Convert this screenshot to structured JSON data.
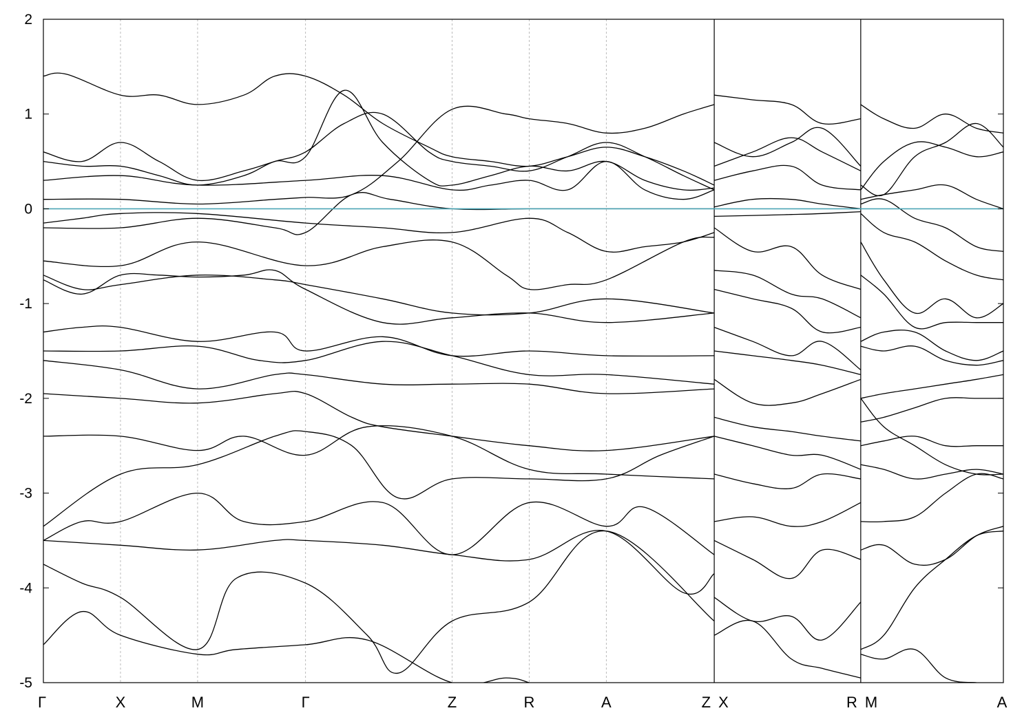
{
  "chart_data": {
    "type": "line",
    "title": "",
    "xlabel": "",
    "ylabel": "",
    "ylim": [
      -5,
      2
    ],
    "y_ticks": [
      2,
      1,
      0,
      -1,
      -2,
      -3,
      -4,
      -5
    ],
    "y_tick_labels": [
      "2",
      "1",
      "0",
      "-1",
      "-2",
      "-3",
      "-4",
      "-5"
    ],
    "fermi_level": 0,
    "fermi_line_color": "#4ba5b5",
    "grid": false,
    "legend": "none",
    "kpath_tick_positions": [
      0,
      1,
      2,
      3.4,
      5.3,
      6.3,
      7.3,
      8.7,
      10.6,
      12.45
    ],
    "kpath_tick_labels": [
      "Γ",
      "X",
      "M",
      "Γ",
      "Z",
      "R",
      "A",
      "Z",
      "R",
      "A"
    ],
    "kpath_extra_labels": [
      {
        "text": "M",
        "x": 10.6,
        "side": "right"
      },
      {
        "text": "X",
        "x": 8.7,
        "side": "right"
      }
    ],
    "segment_breaks": [
      8.7,
      10.6
    ],
    "xlim": [
      0,
      12.45
    ],
    "bands": [
      {
        "x": [
          0,
          0.3,
          1,
          1.5,
          2,
          2.6,
          3,
          3.4,
          3.9,
          4.4,
          5,
          5.3,
          5.8,
          6.3,
          6.8,
          7.3,
          7.8,
          8.3,
          8.7
        ],
        "y": [
          1.4,
          1.42,
          1.2,
          1.2,
          1.1,
          1.2,
          1.4,
          1.4,
          1.2,
          0.9,
          0.65,
          0.55,
          0.5,
          0.45,
          0.55,
          0.65,
          0.55,
          0.4,
          0.25
        ]
      },
      {
        "x": [
          0,
          0.5,
          1,
          1.5,
          2,
          2.6,
          3,
          3.4,
          3.9,
          4.4,
          5,
          5.3,
          5.8,
          6.3,
          6.8,
          7.3,
          7.8,
          8.3,
          8.7
        ],
        "y": [
          0.6,
          0.5,
          0.7,
          0.5,
          0.3,
          0.4,
          0.5,
          0.6,
          0.9,
          1.0,
          0.6,
          0.5,
          0.45,
          0.4,
          0.55,
          0.7,
          0.55,
          0.35,
          0.2
        ]
      },
      {
        "x": [
          0,
          0.5,
          1,
          1.5,
          2,
          2.6,
          3,
          3.4,
          3.9,
          4.4,
          5,
          5.3,
          5.8,
          6.3,
          6.8,
          7.3,
          7.8,
          8.3,
          8.7
        ],
        "y": [
          0.5,
          0.45,
          0.45,
          0.35,
          0.25,
          0.35,
          0.5,
          0.55,
          1.25,
          0.7,
          0.3,
          0.25,
          0.35,
          0.45,
          0.4,
          0.5,
          0.3,
          0.2,
          0.22
        ]
      },
      {
        "x": [
          0,
          1,
          2,
          3.4,
          4.4,
          5.3,
          5.8,
          6.3,
          6.8,
          7.3,
          7.8,
          8.3,
          8.7
        ],
        "y": [
          0.3,
          0.35,
          0.25,
          0.3,
          0.35,
          0.2,
          0.25,
          0.3,
          0.2,
          0.5,
          0.2,
          0.1,
          0.2
        ]
      },
      {
        "x": [
          0,
          1,
          2,
          3,
          3.4,
          4,
          4.6,
          5.3,
          6,
          6.3,
          6.8,
          7.3,
          7.8,
          8.3,
          8.7
        ],
        "y": [
          0.1,
          0.1,
          0.05,
          0.1,
          0.12,
          0.15,
          0.5,
          1.05,
          1.0,
          0.95,
          0.9,
          0.8,
          0.85,
          1.0,
          1.1
        ]
      },
      {
        "x": [
          0,
          0.5,
          1,
          2,
          3.4,
          4.4,
          5.3,
          6.3,
          6.8,
          7.3,
          7.8,
          8.3,
          8.7
        ],
        "y": [
          -0.15,
          -0.1,
          -0.05,
          -0.05,
          -0.15,
          -0.2,
          -0.25,
          -0.1,
          -0.25,
          -0.45,
          -0.4,
          -0.35,
          -0.25
        ]
      },
      {
        "x": [
          0,
          1,
          2,
          3,
          3.4,
          4,
          4.5,
          5.3,
          6.3,
          7.3,
          8.7
        ],
        "y": [
          -0.2,
          -0.2,
          -0.1,
          -0.2,
          -0.25,
          0.15,
          0.1,
          0.0,
          0.0,
          0.0,
          0.0
        ]
      },
      {
        "x": [
          0,
          1,
          2,
          3.4,
          4.4,
          5.3,
          6,
          6.3,
          6.8,
          7.3,
          8.3,
          8.7
        ],
        "y": [
          -0.55,
          -0.6,
          -0.35,
          -0.6,
          -0.4,
          -0.35,
          -0.7,
          -0.85,
          -0.8,
          -0.75,
          -0.35,
          -0.3
        ]
      },
      {
        "x": [
          0,
          0.5,
          1,
          2,
          3,
          3.4,
          4.4,
          5.3,
          6.3,
          7.3,
          8.7
        ],
        "y": [
          -0.7,
          -0.85,
          -0.8,
          -0.7,
          -0.75,
          -0.8,
          -0.95,
          -1.1,
          -1.1,
          -0.95,
          -1.1
        ]
      },
      {
        "x": [
          0,
          0.5,
          1,
          1.5,
          2,
          2.6,
          3,
          3.4,
          4.4,
          5.3,
          6.3,
          7.3,
          8.7
        ],
        "y": [
          -0.75,
          -0.9,
          -0.7,
          -0.7,
          -0.72,
          -0.7,
          -0.65,
          -0.85,
          -1.2,
          -1.15,
          -1.1,
          -1.2,
          -1.1
        ]
      },
      {
        "x": [
          0,
          0.5,
          1,
          2,
          3,
          3.4,
          4.4,
          5.3,
          6.3,
          7.3,
          8.7
        ],
        "y": [
          -1.3,
          -1.25,
          -1.25,
          -1.4,
          -1.3,
          -1.5,
          -1.35,
          -1.55,
          -1.5,
          -1.55,
          -1.55
        ]
      },
      {
        "x": [
          0,
          1,
          2,
          2.8,
          3.4,
          4.4,
          5.3,
          6.3,
          7.3,
          8.7
        ],
        "y": [
          -1.5,
          -1.5,
          -1.45,
          -1.6,
          -1.6,
          -1.4,
          -1.55,
          -1.75,
          -1.75,
          -1.85
        ]
      },
      {
        "x": [
          0,
          1,
          2,
          3,
          3.4,
          4.4,
          5.3,
          6.3,
          7.3,
          8.7
        ],
        "y": [
          -1.6,
          -1.7,
          -1.9,
          -1.75,
          -1.75,
          -1.85,
          -1.85,
          -1.85,
          -1.95,
          -1.9
        ]
      },
      {
        "x": [
          0,
          1,
          2,
          3,
          3.4,
          4,
          4.4,
          5.3,
          6.3,
          7.3,
          8.7
        ],
        "y": [
          -1.95,
          -2.0,
          -2.05,
          -1.95,
          -1.95,
          -2.2,
          -2.3,
          -2.4,
          -2.5,
          -2.55,
          -2.4
        ]
      },
      {
        "x": [
          0,
          1,
          2,
          2.6,
          3.4,
          4.2,
          5.3,
          6.3,
          7.3,
          8.7
        ],
        "y": [
          -2.4,
          -2.4,
          -2.55,
          -2.4,
          -2.6,
          -2.3,
          -2.4,
          -2.75,
          -2.8,
          -2.85
        ]
      },
      {
        "x": [
          0,
          1,
          2,
          3,
          3.4,
          4,
          4.6,
          5.3,
          6.3,
          7.3,
          8,
          8.7
        ],
        "y": [
          -3.35,
          -2.8,
          -2.7,
          -2.4,
          -2.35,
          -2.5,
          -3.05,
          -2.85,
          -2.85,
          -2.85,
          -2.6,
          -2.4
        ]
      },
      {
        "x": [
          0,
          0.5,
          1,
          2,
          2.6,
          3.4,
          4.4,
          5.3,
          6.3,
          7.3,
          7.8,
          8.7
        ],
        "y": [
          -3.5,
          -3.3,
          -3.3,
          -3.0,
          -3.3,
          -3.3,
          -3.1,
          -3.65,
          -3.1,
          -3.35,
          -3.15,
          -3.65
        ]
      },
      {
        "x": [
          0,
          1,
          2,
          3,
          3.4,
          4.4,
          5.3,
          6.3,
          7.3,
          8.3,
          8.7
        ],
        "y": [
          -3.5,
          -3.55,
          -3.6,
          -3.5,
          -3.5,
          -3.55,
          -3.65,
          -3.7,
          -3.4,
          -4.05,
          -3.85
        ]
      },
      {
        "x": [
          0,
          0.5,
          1,
          2,
          2.5,
          3.4,
          4.2,
          4.6,
          5.3,
          6.3,
          7.3,
          8.7
        ],
        "y": [
          -3.75,
          -3.95,
          -4.1,
          -4.65,
          -3.9,
          -3.95,
          -4.5,
          -4.9,
          -4.35,
          -4.15,
          -3.4,
          -4.35
        ]
      },
      {
        "x": [
          0,
          0.5,
          1,
          2,
          2.5,
          3.4,
          4.2,
          5.3,
          6,
          6.3
        ],
        "y": [
          -4.6,
          -4.25,
          -4.5,
          -4.7,
          -4.65,
          -4.6,
          -4.55,
          -5.0,
          -4.95,
          -5.0
        ]
      },
      {
        "x": [
          8.7,
          9.2,
          9.7,
          10.1,
          10.6
        ],
        "y": [
          1.2,
          1.15,
          1.1,
          0.9,
          0.95
        ]
      },
      {
        "x": [
          8.7,
          9.2,
          9.7,
          10.1,
          10.6
        ],
        "y": [
          0.7,
          0.55,
          0.7,
          0.85,
          0.45
        ]
      },
      {
        "x": [
          8.7,
          9.2,
          9.7,
          10.1,
          10.6
        ],
        "y": [
          0.45,
          0.6,
          0.75,
          0.6,
          0.4
        ]
      },
      {
        "x": [
          8.7,
          9.2,
          9.7,
          10.1,
          10.6
        ],
        "y": [
          0.3,
          0.4,
          0.45,
          0.25,
          0.2
        ]
      },
      {
        "x": [
          8.7,
          9.2,
          9.7,
          10.1,
          10.6
        ],
        "y": [
          0.02,
          0.1,
          0.1,
          0.05,
          0.0
        ]
      },
      {
        "x": [
          8.7,
          9.2,
          9.7,
          10.1,
          10.6
        ],
        "y": [
          -0.08,
          -0.07,
          -0.06,
          -0.05,
          -0.03
        ]
      },
      {
        "x": [
          8.7,
          9.2,
          9.7,
          10.1,
          10.6
        ],
        "y": [
          -0.2,
          -0.45,
          -0.4,
          -0.7,
          -0.85
        ]
      },
      {
        "x": [
          8.7,
          9.2,
          9.7,
          10.1,
          10.6
        ],
        "y": [
          -0.65,
          -0.7,
          -0.9,
          -0.95,
          -1.15
        ]
      },
      {
        "x": [
          8.7,
          9.2,
          9.7,
          10.1,
          10.6
        ],
        "y": [
          -0.85,
          -0.95,
          -1.05,
          -1.3,
          -1.25
        ]
      },
      {
        "x": [
          8.7,
          9.2,
          9.7,
          10.1,
          10.6
        ],
        "y": [
          -1.25,
          -1.4,
          -1.55,
          -1.4,
          -1.7
        ]
      },
      {
        "x": [
          8.7,
          9.2,
          9.7,
          10.1,
          10.6
        ],
        "y": [
          -1.5,
          -1.55,
          -1.6,
          -1.65,
          -1.75
        ]
      },
      {
        "x": [
          8.7,
          9.2,
          9.7,
          10.1,
          10.6
        ],
        "y": [
          -1.8,
          -2.05,
          -2.05,
          -1.95,
          -1.8
        ]
      },
      {
        "x": [
          8.7,
          9.2,
          9.7,
          10.1,
          10.6
        ],
        "y": [
          -2.2,
          -2.3,
          -2.35,
          -2.4,
          -2.45
        ]
      },
      {
        "x": [
          8.7,
          9.2,
          9.7,
          10.1,
          10.6
        ],
        "y": [
          -2.4,
          -2.5,
          -2.6,
          -2.6,
          -2.75
        ]
      },
      {
        "x": [
          8.7,
          9.2,
          9.7,
          10.1,
          10.6
        ],
        "y": [
          -2.8,
          -2.9,
          -2.95,
          -2.8,
          -2.85
        ]
      },
      {
        "x": [
          8.7,
          9.2,
          9.7,
          10.1,
          10.6
        ],
        "y": [
          -3.3,
          -3.25,
          -3.35,
          -3.3,
          -3.1
        ]
      },
      {
        "x": [
          8.7,
          9.2,
          9.7,
          10.1,
          10.6
        ],
        "y": [
          -3.5,
          -3.7,
          -3.9,
          -3.6,
          -3.7
        ]
      },
      {
        "x": [
          8.7,
          9.2,
          9.7,
          10.1,
          10.6
        ],
        "y": [
          -4.1,
          -4.35,
          -4.3,
          -4.55,
          -4.15
        ]
      },
      {
        "x": [
          8.7,
          9.2,
          9.7,
          10.1,
          10.6
        ],
        "y": [
          -4.5,
          -4.35,
          -4.75,
          -4.85,
          -4.95
        ]
      },
      {
        "x": [
          10.6,
          10.9,
          11.3,
          11.7,
          12.1,
          12.45
        ],
        "y": [
          1.1,
          0.95,
          0.85,
          1.0,
          0.85,
          0.8
        ]
      },
      {
        "x": [
          10.6,
          10.9,
          11.3,
          11.7,
          12.1,
          12.45
        ],
        "y": [
          0.25,
          0.15,
          0.55,
          0.7,
          0.9,
          0.65
        ]
      },
      {
        "x": [
          10.6,
          10.9,
          11.3,
          11.7,
          12.1,
          12.45
        ],
        "y": [
          0.2,
          0.5,
          0.7,
          0.65,
          0.55,
          0.6
        ]
      },
      {
        "x": [
          10.6,
          10.9,
          11.3,
          11.7,
          12.1,
          12.45
        ],
        "y": [
          0.1,
          0.15,
          0.2,
          0.25,
          0.1,
          0.0
        ]
      },
      {
        "x": [
          10.6,
          10.9,
          11.3,
          11.7,
          12.1,
          12.45
        ],
        "y": [
          0.05,
          0.1,
          -0.1,
          -0.2,
          -0.4,
          -0.45
        ]
      },
      {
        "x": [
          10.6,
          10.9,
          11.3,
          11.7,
          12.1,
          12.45
        ],
        "y": [
          -0.05,
          -0.25,
          -0.35,
          -0.55,
          -0.7,
          -0.75
        ]
      },
      {
        "x": [
          10.6,
          10.9,
          11.3,
          11.7,
          12.1,
          12.45
        ],
        "y": [
          -0.35,
          -0.75,
          -1.1,
          -0.95,
          -1.15,
          -1.0
        ]
      },
      {
        "x": [
          10.6,
          10.9,
          11.3,
          11.7,
          12.1,
          12.45
        ],
        "y": [
          -0.7,
          -0.9,
          -1.25,
          -1.2,
          -1.2,
          -1.2
        ]
      },
      {
        "x": [
          10.6,
          10.9,
          11.3,
          11.7,
          12.1,
          12.45
        ],
        "y": [
          -1.4,
          -1.3,
          -1.3,
          -1.5,
          -1.6,
          -1.5
        ]
      },
      {
        "x": [
          10.6,
          10.9,
          11.3,
          11.7,
          12.1,
          12.45
        ],
        "y": [
          -1.45,
          -1.5,
          -1.45,
          -1.6,
          -1.65,
          -1.6
        ]
      },
      {
        "x": [
          10.6,
          10.9,
          11.3,
          11.7,
          12.1,
          12.45
        ],
        "y": [
          -2.0,
          -1.95,
          -1.9,
          -1.85,
          -1.8,
          -1.75
        ]
      },
      {
        "x": [
          10.6,
          10.9,
          11.3,
          11.7,
          12.1,
          12.45
        ],
        "y": [
          -2.0,
          -2.3,
          -2.5,
          -2.7,
          -2.8,
          -2.8
        ]
      },
      {
        "x": [
          10.6,
          10.9,
          11.3,
          11.7,
          12.1,
          12.45
        ],
        "y": [
          -2.25,
          -2.2,
          -2.1,
          -2.0,
          -2.0,
          -2.0
        ]
      },
      {
        "x": [
          10.6,
          10.9,
          11.3,
          11.7,
          12.1,
          12.45
        ],
        "y": [
          -2.5,
          -2.45,
          -2.4,
          -2.5,
          -2.5,
          -2.5
        ]
      },
      {
        "x": [
          10.6,
          10.9,
          11.3,
          11.7,
          12.1,
          12.45
        ],
        "y": [
          -2.7,
          -2.75,
          -2.85,
          -2.8,
          -2.75,
          -2.8
        ]
      },
      {
        "x": [
          10.6,
          10.9,
          11.3,
          11.7,
          12.1,
          12.45
        ],
        "y": [
          -3.3,
          -3.3,
          -3.25,
          -3.0,
          -2.8,
          -2.85
        ]
      },
      {
        "x": [
          10.6,
          10.9,
          11.3,
          11.7,
          12.1,
          12.45
        ],
        "y": [
          -3.6,
          -3.55,
          -3.75,
          -3.7,
          -3.45,
          -3.35
        ]
      },
      {
        "x": [
          10.6,
          10.9,
          11.3,
          11.7,
          12.1,
          12.45
        ],
        "y": [
          -4.65,
          -4.5,
          -4.0,
          -3.7,
          -3.45,
          -3.4
        ]
      },
      {
        "x": [
          10.6,
          10.9,
          11.3,
          11.7,
          12.1
        ],
        "y": [
          -4.7,
          -4.75,
          -4.65,
          -4.95,
          -5.0
        ]
      }
    ]
  }
}
